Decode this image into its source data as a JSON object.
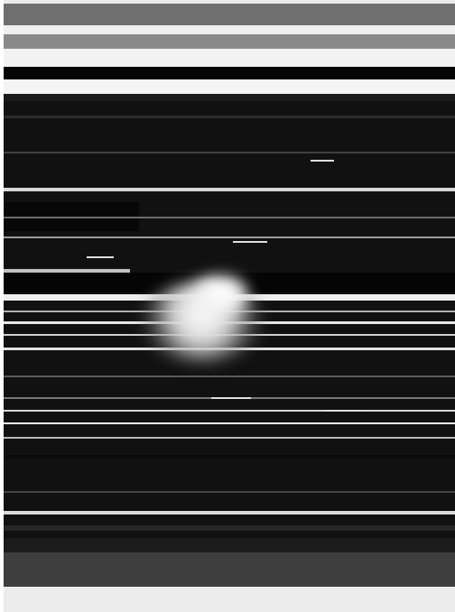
{
  "image": {
    "description_icon": "distorted-scanline-photo-icon",
    "colors": {
      "frame_light": "#ebebeb",
      "frame_gray": "#6f6f6f",
      "frame_dark": "#3e3e3e",
      "photo_background": "#111111",
      "flare": "#ffffff"
    }
  }
}
